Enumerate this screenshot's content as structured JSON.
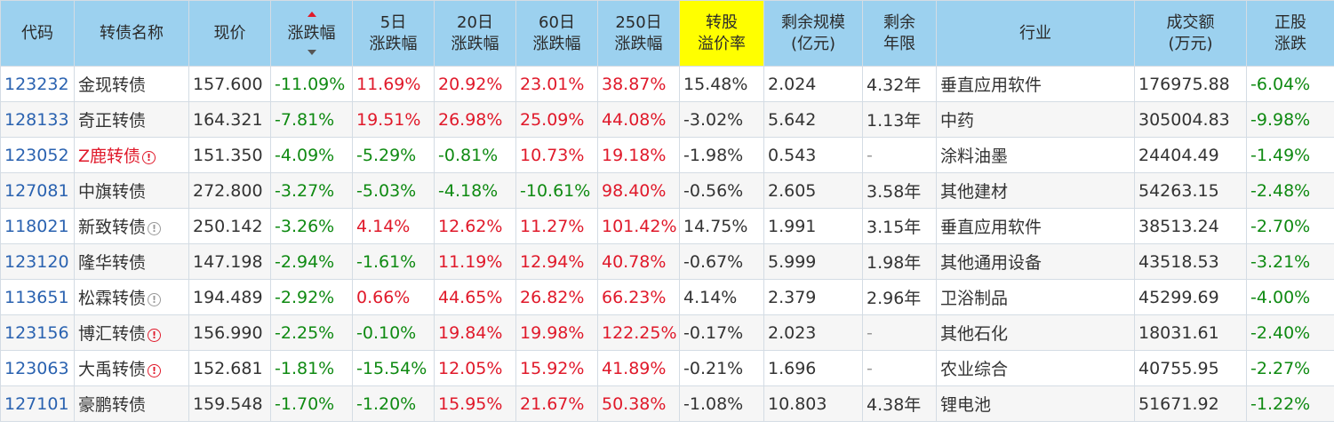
{
  "table": {
    "headers": [
      [
        "代码"
      ],
      [
        "转债名称"
      ],
      [
        "现价"
      ],
      [
        "涨跌幅"
      ],
      [
        "5日",
        "涨跌幅"
      ],
      [
        "20日",
        "涨跌幅"
      ],
      [
        "60日",
        "涨跌幅"
      ],
      [
        "250日",
        "涨跌幅"
      ],
      [
        "转股",
        "溢价率"
      ],
      [
        "剩余规模",
        "(亿元)"
      ],
      [
        "剩余",
        "年限"
      ],
      [
        "行业"
      ],
      [
        "成交额",
        "(万元)"
      ],
      [
        "正股",
        "涨跌"
      ]
    ],
    "highlight_header_color": "#ffff00",
    "header_bg_color": "#9cd1ef",
    "rows": [
      {
        "code": "123232",
        "name": "金现转债",
        "name_red": false,
        "icon": "",
        "price": "157.600",
        "chg": "-11.09%",
        "chg5": "11.69%",
        "chg20": "20.92%",
        "chg60": "23.01%",
        "chg250": "38.87%",
        "premium": "15.48%",
        "scale": "2.024",
        "years": "4.32年",
        "industry": "垂直应用软件",
        "turnover": "176975.88",
        "stock_chg": "-6.04%"
      },
      {
        "code": "128133",
        "name": "奇正转债",
        "name_red": false,
        "icon": "",
        "price": "164.321",
        "chg": "-7.81%",
        "chg5": "19.51%",
        "chg20": "26.98%",
        "chg60": "25.09%",
        "chg250": "44.08%",
        "premium": "-3.02%",
        "scale": "5.642",
        "years": "1.13年",
        "industry": "中药",
        "turnover": "305004.83",
        "stock_chg": "-9.98%"
      },
      {
        "code": "123052",
        "name": "Z鹿转债",
        "name_red": true,
        "icon": "red",
        "price": "151.350",
        "chg": "-4.09%",
        "chg5": "-5.29%",
        "chg20": "-0.81%",
        "chg60": "10.73%",
        "chg250": "19.18%",
        "premium": "-1.98%",
        "scale": "0.543",
        "years": "-",
        "industry": "涂料油墨",
        "turnover": "24404.49",
        "stock_chg": "-1.49%"
      },
      {
        "code": "127081",
        "name": "中旗转债",
        "name_red": false,
        "icon": "",
        "price": "272.800",
        "chg": "-3.27%",
        "chg5": "-5.03%",
        "chg20": "-4.18%",
        "chg60": "-10.61%",
        "chg250": "98.40%",
        "premium": "-0.56%",
        "scale": "2.605",
        "years": "3.58年",
        "industry": "其他建材",
        "turnover": "54263.15",
        "stock_chg": "-2.48%"
      },
      {
        "code": "118021",
        "name": "新致转债",
        "name_red": false,
        "icon": "grey",
        "price": "250.142",
        "chg": "-3.26%",
        "chg5": "4.14%",
        "chg20": "12.62%",
        "chg60": "11.27%",
        "chg250": "101.42%",
        "premium": "14.75%",
        "scale": "1.991",
        "years": "3.15年",
        "industry": "垂直应用软件",
        "turnover": "38513.24",
        "stock_chg": "-2.70%"
      },
      {
        "code": "123120",
        "name": "隆华转债",
        "name_red": false,
        "icon": "",
        "price": "147.198",
        "chg": "-2.94%",
        "chg5": "-1.61%",
        "chg20": "11.19%",
        "chg60": "12.94%",
        "chg250": "40.78%",
        "premium": "-0.67%",
        "scale": "5.999",
        "years": "1.98年",
        "industry": "其他通用设备",
        "turnover": "43518.53",
        "stock_chg": "-3.21%"
      },
      {
        "code": "113651",
        "name": "松霖转债",
        "name_red": false,
        "icon": "grey",
        "price": "194.489",
        "chg": "-2.92%",
        "chg5": "0.66%",
        "chg20": "44.65%",
        "chg60": "26.82%",
        "chg250": "66.23%",
        "premium": "4.14%",
        "scale": "2.379",
        "years": "2.96年",
        "industry": "卫浴制品",
        "turnover": "45299.69",
        "stock_chg": "-4.00%"
      },
      {
        "code": "123156",
        "name": "博汇转债",
        "name_red": false,
        "icon": "red",
        "price": "156.990",
        "chg": "-2.25%",
        "chg5": "-0.10%",
        "chg20": "19.84%",
        "chg60": "19.98%",
        "chg250": "122.25%",
        "premium": "-0.17%",
        "scale": "2.023",
        "years": "-",
        "industry": "其他石化",
        "turnover": "18031.61",
        "stock_chg": "-2.40%"
      },
      {
        "code": "123063",
        "name": "大禹转债",
        "name_red": false,
        "icon": "red",
        "price": "152.681",
        "chg": "-1.81%",
        "chg5": "-15.54%",
        "chg20": "12.05%",
        "chg60": "15.92%",
        "chg250": "41.89%",
        "premium": "-0.21%",
        "scale": "1.696",
        "years": "-",
        "industry": "农业综合",
        "turnover": "40755.95",
        "stock_chg": "-2.27%"
      },
      {
        "code": "127101",
        "name": "豪鹏转债",
        "name_red": false,
        "icon": "",
        "price": "159.548",
        "chg": "-1.70%",
        "chg5": "-1.20%",
        "chg20": "15.95%",
        "chg60": "21.67%",
        "chg250": "50.38%",
        "premium": "-1.08%",
        "scale": "10.803",
        "years": "4.38年",
        "industry": "锂电池",
        "turnover": "51671.92",
        "stock_chg": "-1.22%"
      }
    ]
  }
}
